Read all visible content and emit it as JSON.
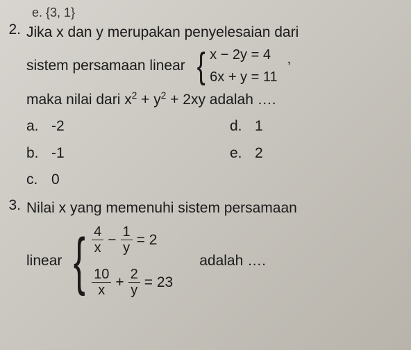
{
  "partial_top": "e.  {3, 1}",
  "q2": {
    "number": "2.",
    "line1": "Jika x dan y merupakan penyelesaian dari",
    "line2_pre": "sistem  persamaan  linear",
    "eq1": "x − 2y = 4",
    "eq2": "6x + y = 11",
    "after_system": ",",
    "line3_pre": "maka nilai dari  x",
    "line3_mid": " + y",
    "line3_post": " + 2xy adalah ….",
    "choices": {
      "a": "-2",
      "b": "-1",
      "c": "0",
      "d": "1",
      "e": "2"
    }
  },
  "q3": {
    "number": "3.",
    "line1": "Nilai x yang memenuhi sistem persamaan",
    "linear_word": "linear",
    "eq1_a_num": "4",
    "eq1_a_den": "x",
    "eq1_op": "−",
    "eq1_b_num": "1",
    "eq1_b_den": "y",
    "eq1_rhs": "= 2",
    "eq2_a_num": "10",
    "eq2_a_den": "x",
    "eq2_op": "+",
    "eq2_b_num": "2",
    "eq2_b_den": "y",
    "eq2_rhs": "= 23",
    "adalah": "adalah …."
  }
}
